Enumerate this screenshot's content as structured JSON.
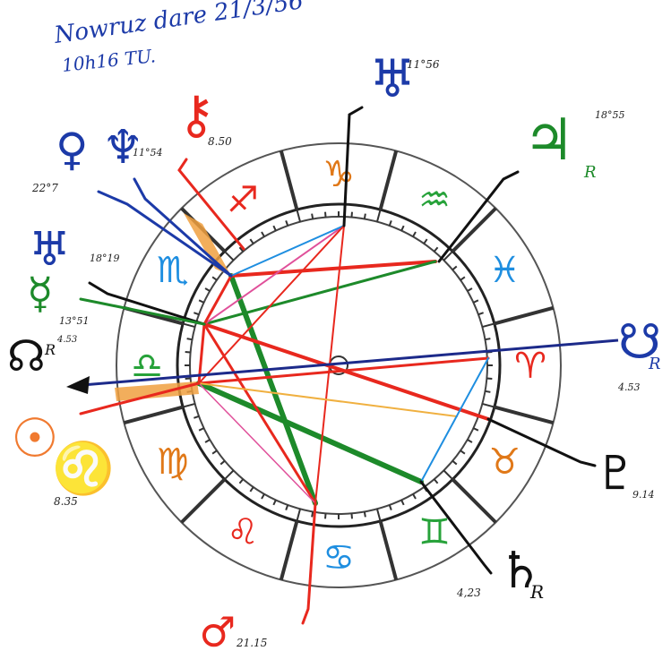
{
  "header": {
    "line1": "Nowruz dare 21/3/56",
    "line2": "10h16 TU."
  },
  "colors": {
    "fire": "#e8281e",
    "earth": "#e07818",
    "air": "#27a23a",
    "water": "#1e8ee0",
    "ink": "#111111",
    "blue": "#1c3aa8",
    "green": "#1d8a2a",
    "red": "#e8281e",
    "orange": "#f07a30",
    "pink": "#e0509a"
  },
  "signs": [
    {
      "name": "capricorn",
      "glyph": "♑",
      "color": "#e07818"
    },
    {
      "name": "sagittarius",
      "glyph": "♐",
      "color": "#e8281e"
    },
    {
      "name": "scorpio",
      "glyph": "♏",
      "color": "#1e8ee0"
    },
    {
      "name": "libra",
      "glyph": "♎",
      "color": "#27a23a"
    },
    {
      "name": "virgo",
      "glyph": "♍",
      "color": "#e07818"
    },
    {
      "name": "leo",
      "glyph": "♌",
      "color": "#e8281e"
    },
    {
      "name": "cancer",
      "glyph": "♋",
      "color": "#1e8ee0"
    },
    {
      "name": "gemini",
      "glyph": "♊",
      "color": "#27a23a"
    },
    {
      "name": "taurus",
      "glyph": "♉",
      "color": "#e07818"
    },
    {
      "name": "aries",
      "glyph": "♈",
      "color": "#e8281e"
    },
    {
      "name": "pisces",
      "glyph": "♓",
      "color": "#1e8ee0"
    },
    {
      "name": "aquarius",
      "glyph": "♒",
      "color": "#27a23a"
    }
  ],
  "planets": [
    {
      "name": "uranus-sagittarius",
      "glyph": "♅",
      "degree": "11°56",
      "retro": "",
      "color": "#1c3aa8"
    },
    {
      "name": "chiron",
      "glyph": "⚷",
      "degree": "8.50",
      "retro": "",
      "color": "#e8281e"
    },
    {
      "name": "neptune",
      "glyph": "♆",
      "degree": "11°54",
      "retro": "",
      "color": "#1c3aa8"
    },
    {
      "name": "venus-q",
      "glyph": "♀",
      "degree": "22°7",
      "retro": "",
      "color": "#1c3aa8"
    },
    {
      "name": "uranus-pisces",
      "glyph": "♅",
      "degree": "18°19",
      "retro": "",
      "color": "#1c3aa8"
    },
    {
      "name": "mercury",
      "glyph": "☿",
      "degree": "13°51",
      "retro": "",
      "color": "#1d8a2a"
    },
    {
      "name": "lunar-node",
      "glyph": "☊",
      "degree": "4.53",
      "retro": "R",
      "color": "#111111"
    },
    {
      "name": "sun",
      "glyph": "☉",
      "degree": "8.35",
      "retro": "",
      "color": "#f07a30"
    },
    {
      "name": "mars",
      "glyph": "♂",
      "degree": "21.15",
      "retro": "",
      "color": "#e8281e"
    },
    {
      "name": "saturn",
      "glyph": "♄",
      "degree": "4,23",
      "retro": "R",
      "color": "#111111"
    },
    {
      "name": "pluto",
      "glyph": "♇",
      "degree": "9.14",
      "retro": "",
      "color": "#111111"
    },
    {
      "name": "south-node",
      "glyph": "☋",
      "degree": "4.53",
      "retro": "R",
      "color": "#1c3aa8"
    },
    {
      "name": "jupiter",
      "glyph": "♃",
      "degree": "18°55",
      "retro": "R",
      "color": "#1d8a2a"
    }
  ]
}
